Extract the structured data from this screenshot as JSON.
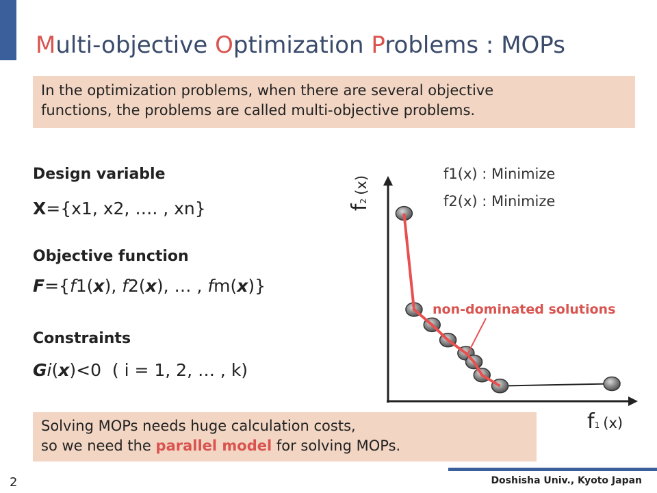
{
  "title": {
    "parts": [
      {
        "text": "M",
        "hl": true
      },
      {
        "text": "ulti-objective ",
        "hl": false
      },
      {
        "text": "O",
        "hl": true
      },
      {
        "text": "ptimization ",
        "hl": false
      },
      {
        "text": "P",
        "hl": true
      },
      {
        "text": "roblems : MOPs",
        "hl": false
      }
    ]
  },
  "intro": {
    "line1": "In the optimization problems, when there are several objective",
    "line2": "functions, the problems are called multi-objective problems."
  },
  "design_variable": {
    "label": "Design variable",
    "var": "X",
    "rest": "={x1, x2, …. , xn}"
  },
  "objective_function": {
    "label": "Objective function",
    "formula": "={f1(x), f2(x), … , fm(x)}"
  },
  "constraints": {
    "label": "Constraints",
    "formula": "( i = 1, 2, … , k)"
  },
  "objectives": {
    "f1": "f1(x) : Minimize",
    "f2": "f2(x) : Minimize"
  },
  "chart": {
    "x_axis_main": "f",
    "x_axis_sub": "1",
    "x_axis_arg": "(x)",
    "y_axis_main": "f",
    "y_axis_sub": "2",
    "y_axis_arg": "(x)",
    "annotation": "non-dominated solutions",
    "colors": {
      "front": "#e8504f",
      "point": "#777777",
      "annotation": "#d9534f"
    }
  },
  "summary": {
    "line1": "Solving MOPs needs huge calculation costs,",
    "line2_pre": "so we need the ",
    "line2_em": "parallel model",
    "line2_post": " for solving MOPs."
  },
  "footer": {
    "affiliation": "Doshisha Univ., Kyoto Japan",
    "page": "2"
  },
  "chart_data": {
    "type": "scatter",
    "title": "",
    "xlabel": "f1(x)",
    "ylabel": "f2(x)",
    "grid": false,
    "series": [
      {
        "name": "non-dominated solutions",
        "x": [
          0.8,
          1.3,
          2.2,
          3.0,
          3.9,
          4.3,
          4.7,
          5.6
        ],
        "y": [
          8.6,
          4.2,
          3.5,
          2.8,
          2.2,
          1.8,
          1.2,
          0.7
        ]
      },
      {
        "x": [
          11.2
        ],
        "y": [
          0.8
        ]
      }
    ],
    "xlim": [
      0,
      12.5
    ],
    "ylim": [
      0,
      10
    ]
  }
}
